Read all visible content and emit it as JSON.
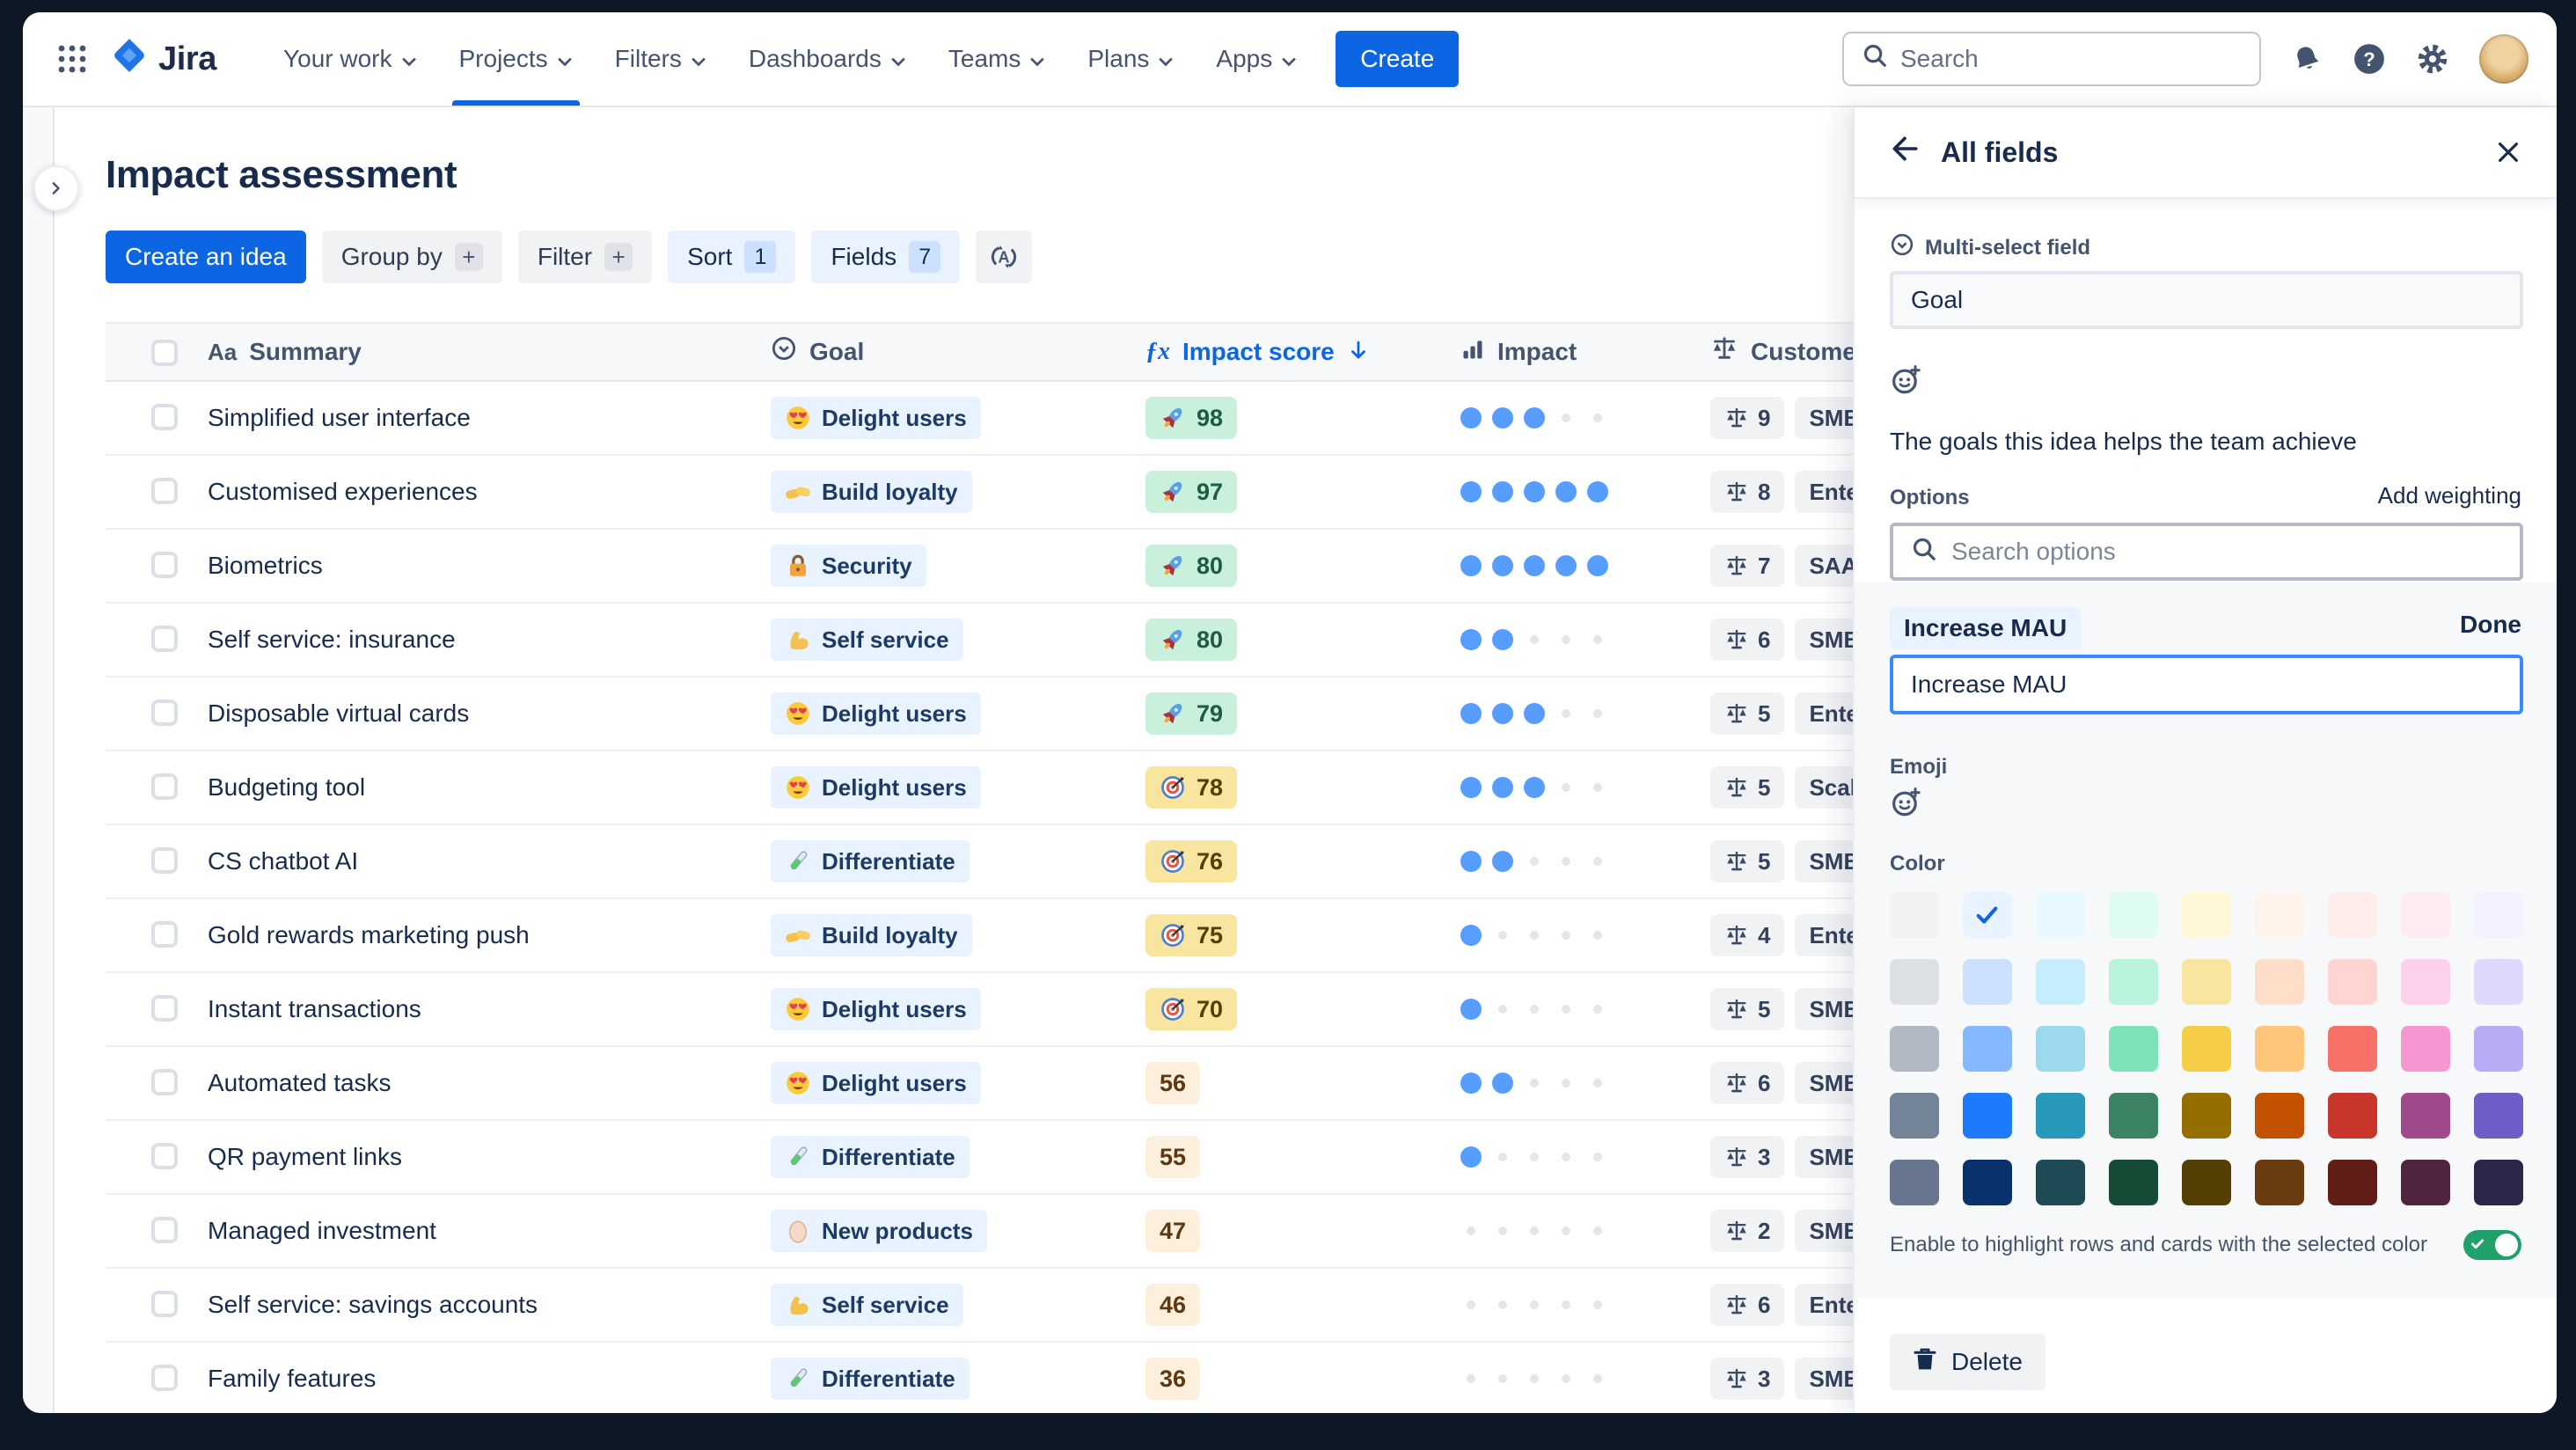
{
  "theme": {
    "accent_blue": "#0C66E4",
    "dot_blue": "#579DFF",
    "toggle_on_green": "#22A06B",
    "score_positive_bg": "#C8F0DA",
    "score_warning_bg": "#F8E6A0",
    "score_neutral_bg": "#FCF0DC",
    "goal_pill_bg": "#E9F2FF",
    "frame_color": "#0D1726"
  },
  "nav": {
    "logo_text": "Jira",
    "items": [
      {
        "label": "Your work",
        "active": false
      },
      {
        "label": "Projects",
        "active": true
      },
      {
        "label": "Filters",
        "active": false
      },
      {
        "label": "Dashboards",
        "active": false
      },
      {
        "label": "Teams",
        "active": false
      },
      {
        "label": "Plans",
        "active": false
      },
      {
        "label": "Apps",
        "active": false
      }
    ],
    "create_label": "Create",
    "search_placeholder": "Search",
    "right_icons": [
      "notification-bell-icon",
      "help-icon",
      "settings-gear-icon",
      "avatar"
    ]
  },
  "page": {
    "title": "Impact assessment"
  },
  "toolbar": {
    "create_idea_label": "Create an idea",
    "group_by_label": "Group by",
    "filter_label": "Filter",
    "plus": "+",
    "sort_label": "Sort",
    "sort_count": "1",
    "fields_label": "Fields",
    "fields_count": "7",
    "rank_icon": "sort-alpha-icon"
  },
  "table": {
    "headers": {
      "summary_icon": "Aa",
      "summary": "Summary",
      "goal": "Goal",
      "impact_score_fx": "ƒx",
      "impact_score": "Impact score",
      "impact": "Impact",
      "customer": "Customer"
    },
    "rows": [
      {
        "summary": "Simplified user interface",
        "goal": "Delight users",
        "goal_icon": "heart-eyes",
        "score": "98",
        "score_icon": "rocket",
        "score_style": "positive",
        "dots": 3,
        "customer_count": "9",
        "customer_tag": "SMB"
      },
      {
        "summary": "Customised experiences",
        "goal": "Build loyalty",
        "goal_icon": "handshake",
        "score": "97",
        "score_icon": "rocket",
        "score_style": "positive",
        "dots": 5,
        "customer_count": "8",
        "customer_tag": "Enter"
      },
      {
        "summary": "Biometrics",
        "goal": "Security",
        "goal_icon": "lock",
        "score": "80",
        "score_icon": "rocket",
        "score_style": "positive",
        "dots": 5,
        "customer_count": "7",
        "customer_tag": "SAAS"
      },
      {
        "summary": "Self service: insurance",
        "goal": "Self service",
        "goal_icon": "biceps",
        "score": "80",
        "score_icon": "rocket",
        "score_style": "positive",
        "dots": 2,
        "customer_count": "6",
        "customer_tag": "SMB"
      },
      {
        "summary": "Disposable virtual cards",
        "goal": "Delight users",
        "goal_icon": "heart-eyes",
        "score": "79",
        "score_icon": "rocket",
        "score_style": "positive",
        "dots": 3,
        "customer_count": "5",
        "customer_tag": "Enterp"
      },
      {
        "summary": "Budgeting tool",
        "goal": "Delight users",
        "goal_icon": "heart-eyes",
        "score": "78",
        "score_icon": "dart",
        "score_style": "warning",
        "dots": 3,
        "customer_count": "5",
        "customer_tag": "Scale"
      },
      {
        "summary": "CS chatbot AI",
        "goal": "Differentiate",
        "goal_icon": "test-tube",
        "score": "76",
        "score_icon": "dart",
        "score_style": "warning",
        "dots": 2,
        "customer_count": "5",
        "customer_tag": "SMB"
      },
      {
        "summary": "Gold rewards marketing push",
        "goal": "Build loyalty",
        "goal_icon": "handshake",
        "score": "75",
        "score_icon": "dart",
        "score_style": "warning",
        "dots": 1,
        "customer_count": "4",
        "customer_tag": "Enter"
      },
      {
        "summary": "Instant transactions",
        "goal": "Delight users",
        "goal_icon": "heart-eyes",
        "score": "70",
        "score_icon": "dart",
        "score_style": "warning",
        "dots": 1,
        "customer_count": "5",
        "customer_tag": "SMB"
      },
      {
        "summary": "Automated tasks",
        "goal": "Delight users",
        "goal_icon": "heart-eyes",
        "score": "56",
        "score_icon": null,
        "score_style": "neutral",
        "dots": 2,
        "customer_count": "6",
        "customer_tag": "SMB"
      },
      {
        "summary": "QR payment links",
        "goal": "Differentiate",
        "goal_icon": "test-tube",
        "score": "55",
        "score_icon": null,
        "score_style": "neutral",
        "dots": 1,
        "customer_count": "3",
        "customer_tag": "SMB"
      },
      {
        "summary": "Managed investment",
        "goal": "New products",
        "goal_icon": "egg",
        "score": "47",
        "score_icon": null,
        "score_style": "neutral",
        "dots": 0,
        "customer_count": "2",
        "customer_tag": "SMB"
      },
      {
        "summary": "Self service: savings accounts",
        "goal": "Self service",
        "goal_icon": "biceps",
        "score": "46",
        "score_icon": null,
        "score_style": "neutral",
        "dots": 0,
        "customer_count": "6",
        "customer_tag": "Enter"
      },
      {
        "summary": "Family features",
        "goal": "Differentiate",
        "goal_icon": "test-tube",
        "score": "36",
        "score_icon": null,
        "score_style": "neutral",
        "dots": 0,
        "customer_count": "3",
        "customer_tag": "SMB"
      }
    ]
  },
  "panel": {
    "title": "All fields",
    "field_type_label": "Multi-select field",
    "field_name_value": "Goal",
    "description": "The goals this idea helps the team achieve",
    "options_label": "Options",
    "add_weighting_label": "Add weighting",
    "search_placeholder": "Search options",
    "editing_option": {
      "label": "Increase MAU",
      "done_label": "Done",
      "value": "Increase MAU",
      "emoji_label": "Emoji",
      "color_label": "Color"
    },
    "swatches": [
      [
        "#F1F2F4",
        "#E9F2FF",
        "#E7F9FF",
        "#DFFCF0",
        "#FFF7D6",
        "#FFF3EB",
        "#FFEDEB",
        "#FFECF1",
        "#F3F0FF"
      ],
      [
        "#DCDFE4",
        "#CCE0FF",
        "#C6EDFB",
        "#BAF3DB",
        "#F8E6A0",
        "#FEDEC8",
        "#FFD5D2",
        "#FDD0EC",
        "#DFD8FD"
      ],
      [
        "#B3B9C4",
        "#85B8FF",
        "#9DD9EE",
        "#7EE2B8",
        "#F5CD47",
        "#FEC57B",
        "#F87168",
        "#F797D2",
        "#B8ACF6"
      ],
      [
        "#738496",
        "#1D7AFC",
        "#2898BD",
        "#3C8362",
        "#946F00",
        "#C25100",
        "#C9372C",
        "#A1498D",
        "#6E5DC6"
      ],
      [
        "#67758F",
        "#09326C",
        "#1D4A55",
        "#164B35",
        "#533F04",
        "#693C12",
        "#601E16",
        "#50253F",
        "#2B2749"
      ]
    ],
    "selected_swatch": {
      "row": 0,
      "col": 1
    },
    "highlight_toggle": {
      "label": "Enable to highlight rows and cards with the selected color",
      "on": true
    },
    "delete_label": "Delete"
  }
}
